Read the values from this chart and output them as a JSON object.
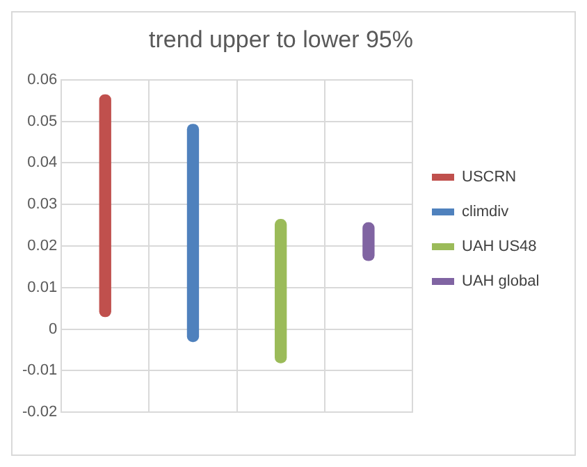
{
  "chart_data": {
    "type": "bar",
    "title": "trend upper to lower 95%",
    "categories": [
      null,
      null,
      null,
      null
    ],
    "ylim": [
      -0.02,
      0.06
    ],
    "yticks": [
      -0.02,
      -0.01,
      0,
      0.01,
      0.02,
      0.03,
      0.04,
      0.05,
      0.06
    ],
    "grid": true,
    "legend": "right",
    "series": [
      {
        "name": "USCRN",
        "color": "#c0504d",
        "values": [
          0.0534,
          null,
          null,
          null
        ],
        "base": [
          0.003,
          null,
          null,
          null
        ]
      },
      {
        "name": "climdiv",
        "color": "#4f81bd",
        "values": [
          null,
          0.0523,
          null,
          null
        ],
        "base": [
          null,
          -0.003,
          null,
          null
        ]
      },
      {
        "name": "UAH US48",
        "color": "#9bbb59",
        "values": [
          null,
          null,
          0.0345,
          null
        ],
        "base": [
          null,
          null,
          -0.0081,
          null
        ]
      },
      {
        "name": "UAH global",
        "color": "#8064a2",
        "values": [
          null,
          null,
          null,
          0.0091
        ],
        "base": [
          null,
          null,
          null,
          0.0165
        ]
      }
    ]
  }
}
